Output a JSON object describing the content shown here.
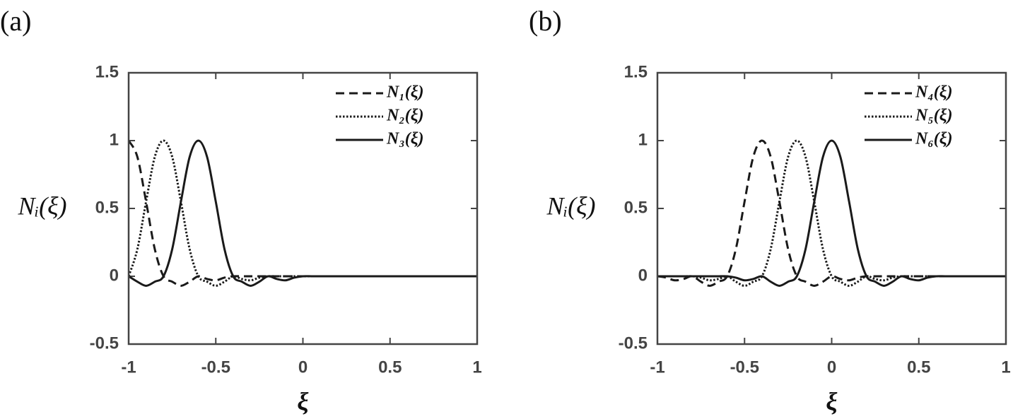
{
  "chart_data": [
    {
      "type": "line",
      "panel_label": "(a)",
      "x_label": "ξ",
      "y_label": "Nᵢ(ξ)",
      "xlim": [
        -1,
        1
      ],
      "ylim": [
        -0.5,
        1.5
      ],
      "xticks": [
        -1,
        -0.5,
        0,
        0.5,
        1
      ],
      "yticks": [
        -0.5,
        0,
        0.5,
        1,
        1.5
      ],
      "legend": "upper right",
      "x": [
        -1,
        -0.95,
        -0.9,
        -0.85,
        -0.8,
        -0.75,
        -0.7,
        -0.65,
        -0.6,
        -0.55,
        -0.5,
        -0.45,
        -0.4,
        -0.35,
        -0.3,
        -0.25,
        -0.2,
        -0.15,
        -0.1,
        -0.05,
        0,
        0.05,
        0.1,
        0.15,
        0.2,
        0.25,
        0.3,
        0.35,
        0.4,
        0.45,
        0.5,
        0.55,
        0.6,
        0.65,
        0.7,
        0.75,
        0.8,
        0.85,
        0.9,
        0.95,
        1
      ],
      "series": [
        {
          "name": "N₁(ξ)",
          "color": "#1a1a1a",
          "dash": "dashed",
          "values": [
            1,
            0.88,
            0.55,
            0.2,
            0,
            -0.04,
            -0.07,
            -0.04,
            0,
            -0.02,
            -0.03,
            -0.01,
            0,
            0,
            0,
            0,
            0,
            0,
            0,
            0,
            0,
            0,
            0,
            0,
            0,
            0,
            0,
            0,
            0,
            0,
            0,
            0,
            0,
            0,
            0,
            0,
            0,
            0,
            0,
            0,
            0
          ]
        },
        {
          "name": "N₂(ξ)",
          "color": "#1a1a1a",
          "dash": "dotted",
          "values": [
            0,
            0.2,
            0.55,
            0.88,
            1,
            0.88,
            0.55,
            0.2,
            0,
            -0.04,
            -0.07,
            -0.04,
            0,
            -0.02,
            -0.03,
            -0.01,
            0,
            0,
            0,
            0,
            0,
            0,
            0,
            0,
            0,
            0,
            0,
            0,
            0,
            0,
            0,
            0,
            0,
            0,
            0,
            0,
            0,
            0,
            0,
            0,
            0
          ]
        },
        {
          "name": "N₃(ξ)",
          "color": "#1a1a1a",
          "dash": "solid",
          "values": [
            0,
            -0.04,
            -0.07,
            -0.04,
            0,
            0.2,
            0.55,
            0.88,
            1,
            0.88,
            0.55,
            0.2,
            0,
            -0.04,
            -0.07,
            -0.04,
            0,
            -0.02,
            -0.03,
            -0.01,
            0,
            0,
            0,
            0,
            0,
            0,
            0,
            0,
            0,
            0,
            0,
            0,
            0,
            0,
            0,
            0,
            0,
            0,
            0,
            0,
            0
          ]
        }
      ]
    },
    {
      "type": "line",
      "panel_label": "(b)",
      "x_label": "ξ",
      "y_label": "Nᵢ(ξ)",
      "xlim": [
        -1,
        1
      ],
      "ylim": [
        -0.5,
        1.5
      ],
      "xticks": [
        -1,
        -0.5,
        0,
        0.5,
        1
      ],
      "yticks": [
        -0.5,
        0,
        0.5,
        1,
        1.5
      ],
      "legend": "upper right",
      "x": [
        -1,
        -0.95,
        -0.9,
        -0.85,
        -0.8,
        -0.75,
        -0.7,
        -0.65,
        -0.6,
        -0.55,
        -0.5,
        -0.45,
        -0.4,
        -0.35,
        -0.3,
        -0.25,
        -0.2,
        -0.15,
        -0.1,
        -0.05,
        0,
        0.05,
        0.1,
        0.15,
        0.2,
        0.25,
        0.3,
        0.35,
        0.4,
        0.45,
        0.5,
        0.55,
        0.6,
        0.65,
        0.7,
        0.75,
        0.8,
        0.85,
        0.9,
        0.95,
        1
      ],
      "series": [
        {
          "name": "N₄(ξ)",
          "color": "#1a1a1a",
          "dash": "dashed",
          "values": [
            0,
            -0.01,
            -0.03,
            -0.02,
            0,
            -0.04,
            -0.07,
            -0.04,
            0,
            0.2,
            0.55,
            0.88,
            1,
            0.88,
            0.55,
            0.2,
            0,
            -0.04,
            -0.07,
            -0.04,
            0,
            -0.02,
            -0.03,
            -0.01,
            0,
            0,
            0,
            0,
            0,
            0,
            0,
            0,
            0,
            0,
            0,
            0,
            0,
            0,
            0,
            0,
            0
          ]
        },
        {
          "name": "N₅(ξ)",
          "color": "#1a1a1a",
          "dash": "dotted",
          "values": [
            0,
            0,
            0,
            0,
            0,
            -0.01,
            -0.03,
            -0.02,
            0,
            -0.04,
            -0.07,
            -0.04,
            0,
            0.2,
            0.55,
            0.88,
            1,
            0.88,
            0.55,
            0.2,
            0,
            -0.04,
            -0.07,
            -0.04,
            0,
            -0.02,
            -0.03,
            -0.01,
            0,
            0,
            0,
            0,
            0,
            0,
            0,
            0,
            0,
            0,
            0,
            0,
            0
          ]
        },
        {
          "name": "N₆(ξ)",
          "color": "#1a1a1a",
          "dash": "solid",
          "values": [
            0,
            0,
            0,
            0,
            0,
            0,
            0,
            0,
            0,
            -0.01,
            -0.03,
            -0.02,
            0,
            -0.04,
            -0.07,
            -0.04,
            0,
            0.2,
            0.55,
            0.88,
            1,
            0.88,
            0.55,
            0.2,
            0,
            -0.04,
            -0.07,
            -0.04,
            0,
            -0.02,
            -0.03,
            -0.01,
            0,
            0,
            0,
            0,
            0,
            0,
            0,
            0,
            0
          ]
        }
      ]
    }
  ]
}
